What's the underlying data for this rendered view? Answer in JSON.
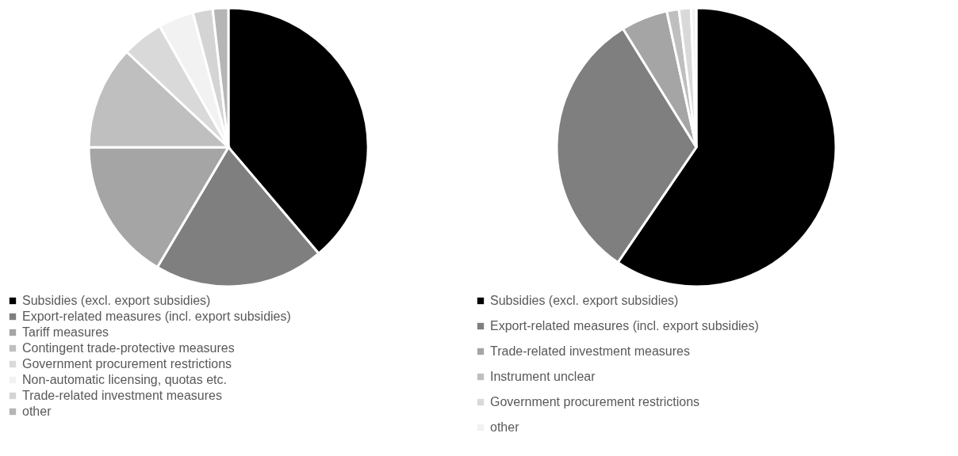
{
  "chart_data": [
    {
      "type": "pie",
      "categories": [
        "Subsidies (excl. export subsidies)",
        "Export-related measures (incl. export subsidies)",
        "Tariff measures",
        "Contingent trade-protective measures",
        "Government procurement restrictions",
        "Non-automatic licensing, quotas etc.",
        "Trade-related investment measures",
        "other"
      ],
      "values": [
        38.8,
        19.7,
        16.5,
        12.0,
        4.8,
        4.1,
        2.3,
        1.8
      ],
      "colors": [
        "#000000",
        "#7f7f7f",
        "#a5a5a5",
        "#bfbfbf",
        "#d9d9d9",
        "#f2f2f2",
        "#d4d4d4",
        "#b5b5b5"
      ],
      "legend": "bottom"
    },
    {
      "type": "pie",
      "categories": [
        "Subsidies (excl. export subsidies)",
        "Export-related measures (incl. export subsidies)",
        "Trade-related investment measures",
        "Instrument unclear",
        "Government procurement restrictions",
        "other"
      ],
      "values": [
        59.5,
        31.7,
        5.4,
        1.4,
        1.4,
        0.6
      ],
      "colors": [
        "#000000",
        "#7f7f7f",
        "#a5a5a5",
        "#bfbfbf",
        "#d9d9d9",
        "#f2f2f2"
      ],
      "legend": "bottom"
    }
  ]
}
